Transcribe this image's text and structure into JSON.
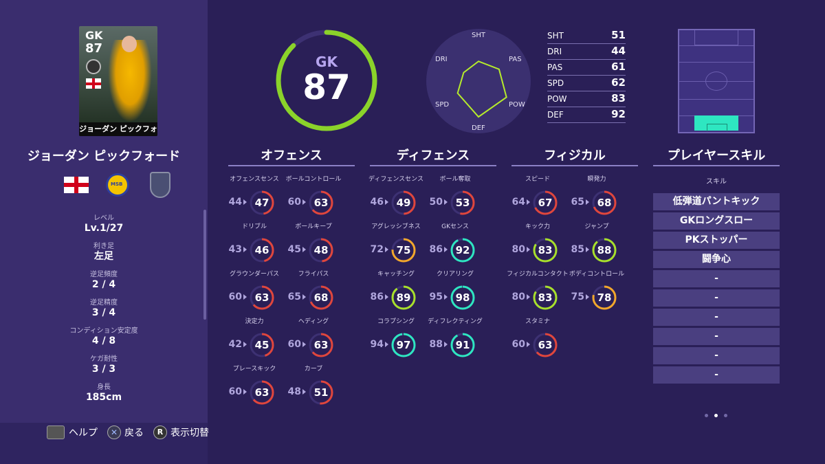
{
  "player": {
    "card_position": "GK",
    "card_rating": "87",
    "card_name": "ジョーダン ピックフォード",
    "name": "ジョーダン ピックフォード",
    "club_icon_text": "MSB"
  },
  "info": [
    {
      "label": "レベル",
      "value": "Lv.1/27"
    },
    {
      "label": "利き足",
      "value": "左足"
    },
    {
      "label": "逆足頻度",
      "value": "2 / 4"
    },
    {
      "label": "逆足精度",
      "value": "3 / 4"
    },
    {
      "label": "コンディション安定度",
      "value": "4 / 8"
    },
    {
      "label": "ケガ耐性",
      "value": "3 / 3"
    },
    {
      "label": "身長",
      "value": "185cm"
    }
  ],
  "help": {
    "help": "ヘルプ",
    "back": "戻る",
    "toggle": "表示切替",
    "r_key": "R"
  },
  "overall": {
    "position": "GK",
    "rating": "87",
    "rating_value": 87
  },
  "radar": {
    "labels": {
      "sht": "SHT",
      "pas": "PAS",
      "pow": "POW",
      "def": "DEF",
      "spd": "SPD",
      "dri": "DRI"
    },
    "values": {
      "SHT": 51,
      "PAS": 61,
      "POW": 83,
      "DEF": 92,
      "SPD": 62,
      "DRI": 44
    }
  },
  "summary": [
    {
      "key": "SHT",
      "value": "51"
    },
    {
      "key": "DRI",
      "value": "44"
    },
    {
      "key": "PAS",
      "value": "61"
    },
    {
      "key": "SPD",
      "value": "62"
    },
    {
      "key": "POW",
      "value": "83"
    },
    {
      "key": "DEF",
      "value": "92"
    }
  ],
  "sections": {
    "offense": "オフェンス",
    "defense": "ディフェンス",
    "physical": "フィジカル",
    "skills": "プレイヤースキル"
  },
  "offense": [
    {
      "name": "オフェンスセンス",
      "base": "44",
      "value": "47",
      "v": 47
    },
    {
      "name": "ボールコントロール",
      "base": "60",
      "value": "63",
      "v": 63
    },
    {
      "name": "ドリブル",
      "base": "43",
      "value": "46",
      "v": 46
    },
    {
      "name": "ボールキープ",
      "base": "45",
      "value": "48",
      "v": 48
    },
    {
      "name": "グラウンダーパス",
      "base": "60",
      "value": "63",
      "v": 63
    },
    {
      "name": "フライパス",
      "base": "65",
      "value": "68",
      "v": 68
    },
    {
      "name": "決定力",
      "base": "42",
      "value": "45",
      "v": 45
    },
    {
      "name": "ヘディング",
      "base": "60",
      "value": "63",
      "v": 63
    },
    {
      "name": "プレースキック",
      "base": "60",
      "value": "63",
      "v": 63
    },
    {
      "name": "カーブ",
      "base": "48",
      "value": "51",
      "v": 51
    }
  ],
  "defense": [
    {
      "name": "ディフェンスセンス",
      "base": "46",
      "value": "49",
      "v": 49
    },
    {
      "name": "ボール奪取",
      "base": "50",
      "value": "53",
      "v": 53
    },
    {
      "name": "アグレッシブネス",
      "base": "72",
      "value": "75",
      "v": 75
    },
    {
      "name": "GKセンス",
      "base": "86",
      "value": "92",
      "v": 92
    },
    {
      "name": "キャッチング",
      "base": "86",
      "value": "89",
      "v": 89
    },
    {
      "name": "クリアリング",
      "base": "95",
      "value": "98",
      "v": 98
    },
    {
      "name": "コラプシング",
      "base": "94",
      "value": "97",
      "v": 97
    },
    {
      "name": "ディフレクティング",
      "base": "88",
      "value": "91",
      "v": 91
    }
  ],
  "physical": [
    {
      "name": "スピード",
      "base": "64",
      "value": "67",
      "v": 67
    },
    {
      "name": "瞬発力",
      "base": "65",
      "value": "68",
      "v": 68
    },
    {
      "name": "キック力",
      "base": "80",
      "value": "83",
      "v": 83
    },
    {
      "name": "ジャンプ",
      "base": "85",
      "value": "88",
      "v": 88
    },
    {
      "name": "フィジカルコンタクト",
      "base": "80",
      "value": "83",
      "v": 83
    },
    {
      "name": "ボディコントロール",
      "base": "75",
      "value": "78",
      "v": 78
    },
    {
      "name": "スタミナ",
      "base": "60",
      "value": "63",
      "v": 63
    }
  ],
  "skills_header": "スキル",
  "skills": [
    "低弾道パントキック",
    "GKロングスロー",
    "PKストッパー",
    "闘争心",
    "-",
    "-",
    "-",
    "-",
    "-",
    "-"
  ],
  "colors": {
    "low": "#e0463c",
    "mid": "#f2a72b",
    "high": "#a8e02b",
    "top": "#2ee6c1",
    "accent": "#8bd32a"
  }
}
